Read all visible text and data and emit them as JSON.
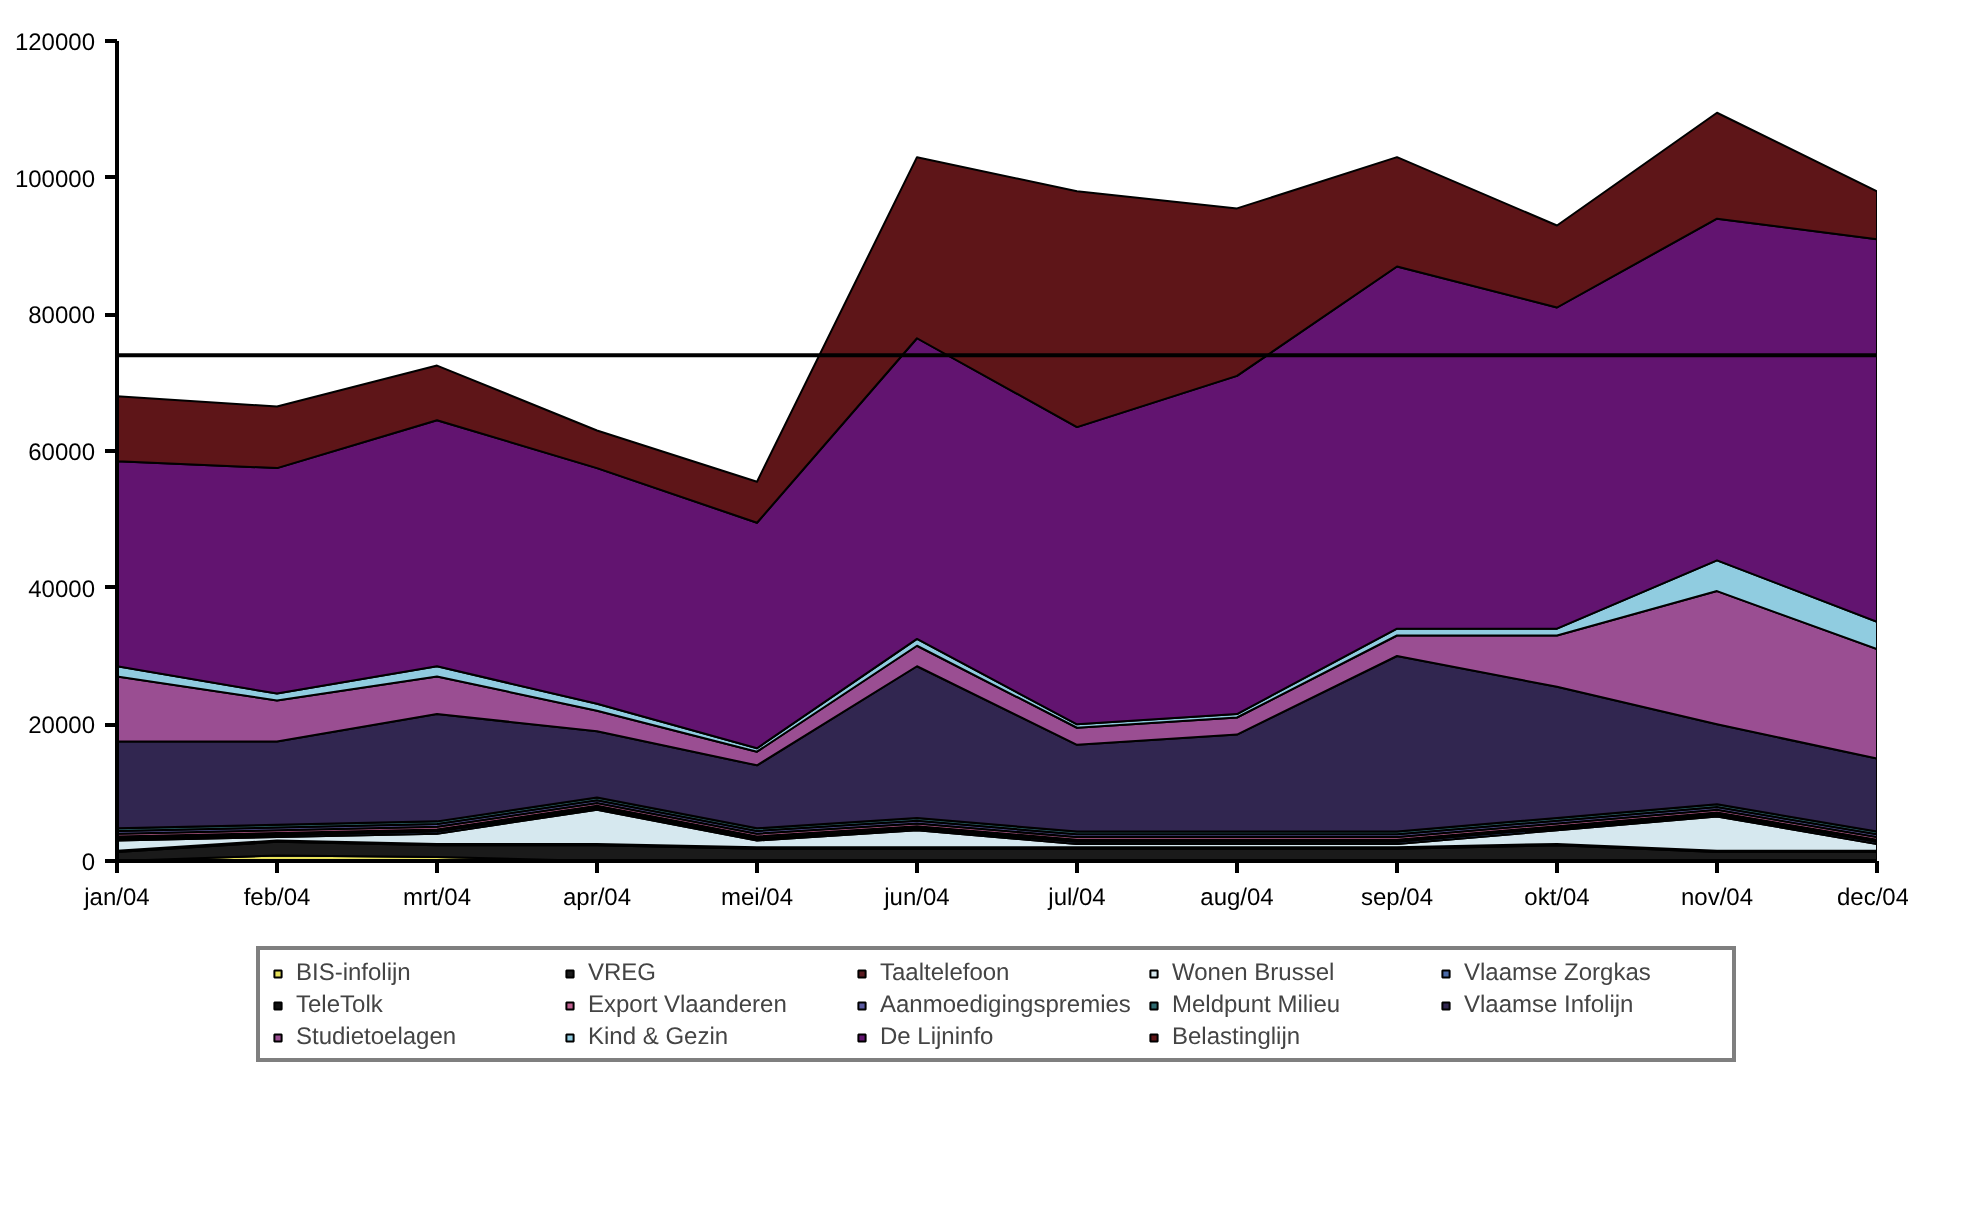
{
  "chart_data": {
    "type": "area",
    "stacked": true,
    "categories": [
      "jan/04",
      "feb/04",
      "mrt/04",
      "apr/04",
      "mei/04",
      "jun/04",
      "jul/04",
      "aug/04",
      "sep/04",
      "okt/04",
      "nov/04",
      "dec/04"
    ],
    "ylim": [
      0,
      120000
    ],
    "yticks": [
      0,
      20000,
      40000,
      60000,
      80000,
      100000,
      120000
    ],
    "grid": false,
    "legend": "bottom",
    "ref_lines": [
      {
        "axis": "y",
        "value": 74000,
        "color": "#000000"
      }
    ],
    "series": [
      {
        "name": "BIS-infolijn",
        "color": "#e6e05a",
        "values": [
          0,
          800,
          600,
          0,
          0,
          0,
          0,
          0,
          0,
          0,
          0,
          0
        ]
      },
      {
        "name": "VREG",
        "color": "#1a1a1a",
        "values": [
          1300,
          2000,
          1700,
          2300,
          1800,
          1800,
          1800,
          1800,
          1800,
          2300,
          1300,
          1300
        ]
      },
      {
        "name": "Taaltelefoon",
        "color": "#5a1a20",
        "values": [
          200,
          200,
          200,
          200,
          200,
          200,
          200,
          200,
          200,
          200,
          200,
          200
        ]
      },
      {
        "name": "Wonen Brussel",
        "color": "#d6e8ef",
        "values": [
          1500,
          500,
          1500,
          5000,
          1000,
          2500,
          500,
          500,
          500,
          2000,
          5000,
          1000
        ]
      },
      {
        "name": "Vlaamse Zorgkas",
        "color": "#4a6aa8",
        "values": [
          300,
          300,
          300,
          300,
          300,
          300,
          300,
          300,
          300,
          300,
          300,
          300
        ]
      },
      {
        "name": "TeleTolk",
        "color": "#111111",
        "values": [
          300,
          300,
          300,
          300,
          300,
          300,
          300,
          300,
          300,
          300,
          300,
          300
        ]
      },
      {
        "name": "Export Vlaanderen",
        "color": "#c06090",
        "values": [
          400,
          400,
          400,
          400,
          400,
          400,
          400,
          400,
          400,
          400,
          400,
          400
        ]
      },
      {
        "name": "Aanmoedigingspremies",
        "color": "#5a5aa0",
        "values": [
          400,
          400,
          400,
          400,
          400,
          400,
          400,
          400,
          400,
          400,
          400,
          400
        ]
      },
      {
        "name": "Meldpunt Milieu",
        "color": "#2e6a70",
        "values": [
          400,
          400,
          400,
          400,
          400,
          400,
          400,
          400,
          400,
          400,
          400,
          400
        ]
      },
      {
        "name": "Vlaamse Infolijn",
        "color": "#312650",
        "values": [
          12700,
          12200,
          15700,
          9700,
          9200,
          22200,
          12700,
          14200,
          25700,
          19200,
          11700,
          10700
        ]
      },
      {
        "name": "Studietoelagen",
        "color": "#9a4e92",
        "values": [
          9500,
          6000,
          5500,
          3000,
          2000,
          3000,
          2500,
          2500,
          3000,
          7500,
          19500,
          16000
        ]
      },
      {
        "name": "Kind & Gezin",
        "color": "#90cce0",
        "values": [
          1500,
          1000,
          1500,
          1000,
          500,
          1000,
          500,
          500,
          1000,
          1000,
          4500,
          4000
        ]
      },
      {
        "name": "De Lijninfo",
        "color": "#621470",
        "values": [
          30000,
          33000,
          36000,
          34500,
          33000,
          44000,
          43500,
          49500,
          53000,
          47000,
          50000,
          56000
        ]
      },
      {
        "name": "Belastinglijn",
        "color": "#5e1518",
        "values": [
          9500,
          9000,
          8000,
          5500,
          6000,
          26500,
          34500,
          24500,
          16000,
          12000,
          15500,
          7000
        ]
      }
    ]
  }
}
